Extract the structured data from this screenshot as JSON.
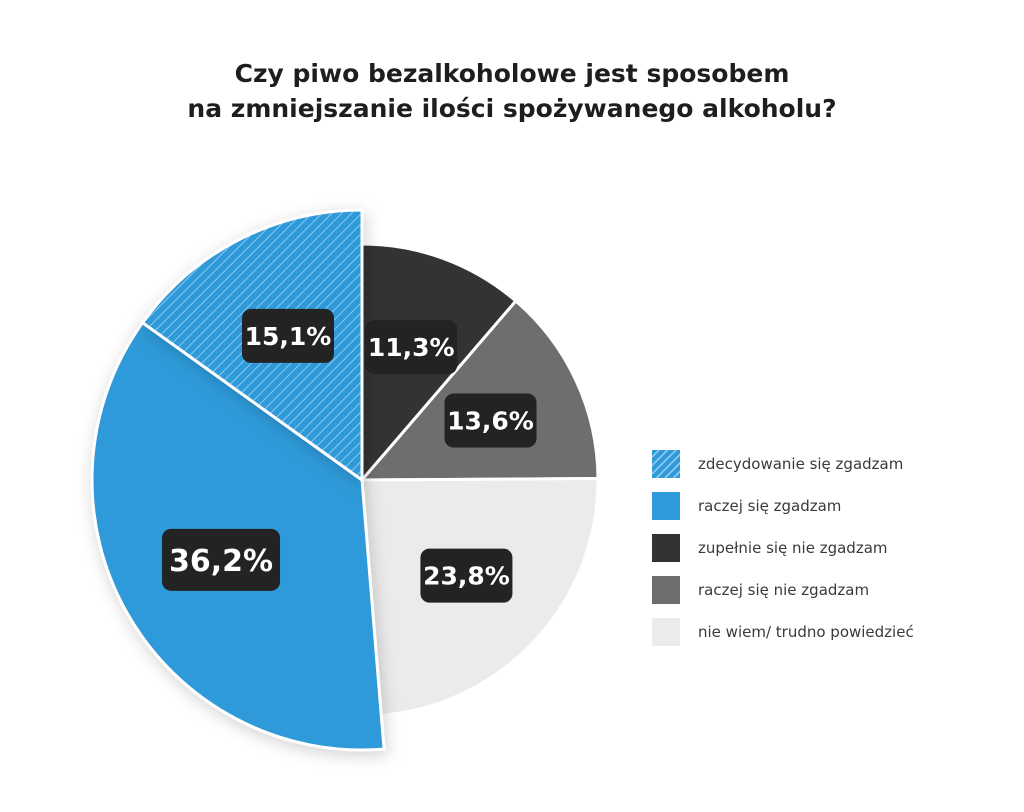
{
  "chart_data": {
    "type": "pie",
    "title_lines": [
      "Czy piwo bezalkoholowe jest sposobem",
      "na zmniejszanie ilości spożywanego alkoholu?"
    ],
    "slices": [
      {
        "name": "zupełnie się nie zgadzam",
        "value": 11.3,
        "label": "11,3%",
        "color": "#333333",
        "pattern": false
      },
      {
        "name": "raczej się nie zgadzam",
        "value": 13.6,
        "label": "13,6%",
        "color": "#6e6e6e",
        "pattern": false
      },
      {
        "name": "nie wiem/ trudno powiedzieć",
        "value": 23.8,
        "label": "23,8%",
        "color": "#ebebeb",
        "pattern": false
      },
      {
        "name": "raczej się zgadzam",
        "value": 36.2,
        "label": "36,2%",
        "color": "#2f9ad9",
        "pattern": false
      },
      {
        "name": "zdecydowanie się zgadzam",
        "value": 15.1,
        "label": "15,1%",
        "color": "#2f9ad9",
        "pattern": true
      }
    ],
    "legend": [
      {
        "label": "zdecydowanie się zgadzam",
        "color": "#2f9ad9",
        "pattern": true
      },
      {
        "label": "raczej się zgadzam",
        "color": "#2f9ad9",
        "pattern": false
      },
      {
        "label": "zupełnie się nie zgadzam",
        "color": "#333333",
        "pattern": false
      },
      {
        "label": "raczej się nie zgadzam",
        "color": "#6e6e6e",
        "pattern": false
      },
      {
        "label": "nie wiem/ trudno powiedzieć",
        "color": "#ebebeb",
        "pattern": false
      }
    ],
    "legend_placement": "right",
    "label_box_color": "#232323",
    "label_text_color": "#ffffff"
  }
}
